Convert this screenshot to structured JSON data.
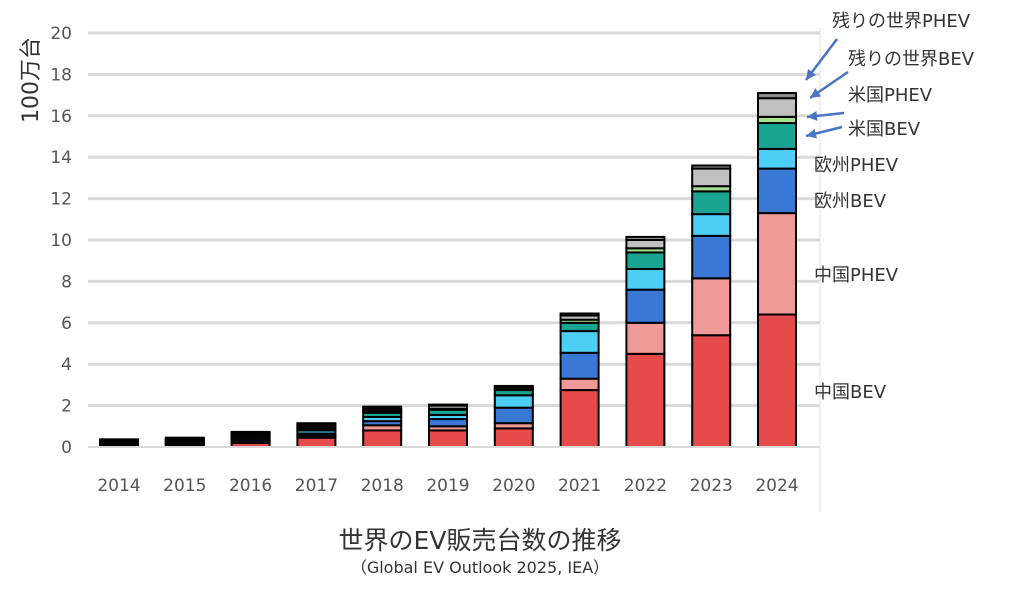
{
  "chart_data": {
    "type": "bar",
    "stacked": true,
    "ylabel": "100万台",
    "ylim": [
      0,
      20
    ],
    "yticks": [
      0,
      2,
      4,
      6,
      8,
      10,
      12,
      14,
      16,
      18,
      20
    ],
    "grid": "horizontal",
    "categories": [
      "2014",
      "2015",
      "2016",
      "2017",
      "2018",
      "2019",
      "2020",
      "2021",
      "2022",
      "2023",
      "2024"
    ],
    "series": [
      {
        "name": "中国BEV",
        "color": "#e54b4b",
        "values": [
          0.05,
          0.1,
          0.2,
          0.45,
          0.8,
          0.8,
          0.9,
          2.75,
          4.5,
          5.4,
          6.4
        ]
      },
      {
        "name": "中国PHEV",
        "color": "#ef9a96",
        "values": [
          0.02,
          0.05,
          0.08,
          0.1,
          0.25,
          0.2,
          0.25,
          0.55,
          1.5,
          2.75,
          4.9
        ]
      },
      {
        "name": "欧州BEV",
        "color": "#3a78d6",
        "values": [
          0.05,
          0.05,
          0.1,
          0.1,
          0.2,
          0.35,
          0.75,
          1.25,
          1.6,
          2.05,
          2.15
        ]
      },
      {
        "name": "欧州PHEV",
        "color": "#4dcff5",
        "values": [
          0.05,
          0.05,
          0.1,
          0.15,
          0.2,
          0.2,
          0.6,
          1.05,
          1.0,
          1.05,
          0.95
        ]
      },
      {
        "name": "米国BEV",
        "color": "#1aa592",
        "values": [
          0.05,
          0.05,
          0.1,
          0.1,
          0.2,
          0.25,
          0.25,
          0.4,
          0.8,
          1.1,
          1.25
        ]
      },
      {
        "name": "米国PHEV",
        "color": "#a5e08a",
        "values": [
          0.05,
          0.05,
          0.05,
          0.1,
          0.1,
          0.05,
          0.05,
          0.15,
          0.2,
          0.25,
          0.3
        ]
      },
      {
        "name": "残りの世界BEV",
        "color": "#c0c0c0",
        "values": [
          0.05,
          0.05,
          0.05,
          0.1,
          0.1,
          0.15,
          0.1,
          0.2,
          0.4,
          0.85,
          0.9
        ]
      },
      {
        "name": "残りの世界PHEV",
        "color": "#8c8c8c",
        "values": [
          0.05,
          0.05,
          0.05,
          0.05,
          0.1,
          0.05,
          0.05,
          0.1,
          0.15,
          0.15,
          0.25
        ]
      }
    ],
    "title": "世界のEV販売台数の推移",
    "source": "（Global EV Outlook 2025, IEA）"
  }
}
